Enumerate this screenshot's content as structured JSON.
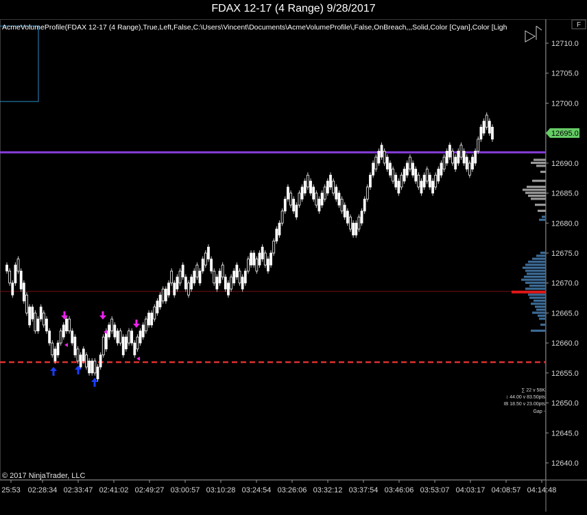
{
  "window": {
    "title": "FDAX 12-17 (4 Range)  9/28/2017"
  },
  "indicator_label": "AcmeVolumeProfile(FDAX 12-17 (4 Range),True,Left,False,C:\\Users\\Vincent\\Documents\\AcmeVolumeProfile\\,False,OnBreach,,,Solid,Color [Cyan],Color [Ligh",
  "panel_badge": "F",
  "copyright": "© 2017 NinjaTrader, LLC",
  "colors": {
    "background": "#000000",
    "candle_up": "#ffffff",
    "purple_line": "#8a3ee0",
    "red_dashed": "#e03030",
    "thin_red_line": "#8a1010",
    "profile_gray": "#9a9a9a",
    "profile_blue": "#3d6b96",
    "poc_red": "#e01818",
    "price_badge": "#66cc66",
    "axis_text": "#d8d8d8"
  },
  "price_axis": {
    "ticks": [
      "12710.0",
      "12705.0",
      "12700.0",
      "12695.0",
      "12690.0",
      "12685.0",
      "12680.0",
      "12675.0",
      "12670.0",
      "12665.0",
      "12660.0",
      "12655.0",
      "12650.0",
      "12645.0",
      "12640.0"
    ],
    "last_price": "12695.0"
  },
  "time_axis": {
    "ticks": [
      "25:53",
      "02:28:34",
      "02:33:47",
      "02:41:02",
      "02:49:27",
      "03:00:57",
      "03:10:28",
      "03:24:54",
      "03:26:06",
      "03:32:12",
      "03:37:54",
      "03:46:06",
      "03:53:07",
      "04:03:17",
      "04:08:57",
      "04:14:48"
    ]
  },
  "levels": {
    "purple": 12691.8,
    "thin_red": 12668.6,
    "red_dashed": 12656.8
  },
  "stats": [
    "∑ 22 v 58K",
    "↕ 44.00 v 83.50pts",
    "IB 18.50 v 23.00pts",
    "Gap -"
  ],
  "chart_data": {
    "type": "candlestick",
    "ylim": [
      12637,
      12714
    ],
    "candles": [
      [
        12672,
        12673
      ],
      [
        12670,
        12672
      ],
      [
        12668,
        12670
      ],
      [
        12670,
        12673
      ],
      [
        12672,
        12674
      ],
      [
        12669,
        12672
      ],
      [
        12667,
        12670
      ],
      [
        12665,
        12668
      ],
      [
        12663,
        12666
      ],
      [
        12664,
        12666
      ],
      [
        12662,
        12665
      ],
      [
        12662,
        12664
      ],
      [
        12664,
        12666
      ],
      [
        12663,
        12665
      ],
      [
        12662,
        12664
      ],
      [
        12660,
        12662
      ],
      [
        12658,
        12660
      ],
      [
        12657,
        12659
      ],
      [
        12658,
        12660
      ],
      [
        12660,
        12662
      ],
      [
        12661,
        12663
      ],
      [
        12662,
        12664
      ],
      [
        12662,
        12664
      ],
      [
        12660,
        12662
      ],
      [
        12658,
        12661
      ],
      [
        12657,
        12659
      ],
      [
        12656,
        12658
      ],
      [
        12657,
        12659
      ],
      [
        12656,
        12658
      ],
      [
        12655,
        12657
      ],
      [
        12655,
        12657
      ],
      [
        12655,
        12657
      ],
      [
        12654,
        12656
      ],
      [
        12656,
        12658
      ],
      [
        12658,
        12661
      ],
      [
        12659,
        12662
      ],
      [
        12661,
        12663
      ],
      [
        12662,
        12664
      ],
      [
        12661,
        12663
      ],
      [
        12660,
        12662
      ],
      [
        12660,
        12662
      ],
      [
        12658,
        12661
      ],
      [
        12659,
        12661
      ],
      [
        12660,
        12662
      ],
      [
        12660,
        12662
      ],
      [
        12658,
        12660
      ],
      [
        12659,
        12661
      ],
      [
        12660,
        12662
      ],
      [
        12661,
        12663
      ],
      [
        12662,
        12664
      ],
      [
        12663,
        12665
      ],
      [
        12663,
        12665
      ],
      [
        12664,
        12666
      ],
      [
        12665,
        12667
      ],
      [
        12666,
        12668
      ],
      [
        12667,
        12669
      ],
      [
        12667,
        12669
      ],
      [
        12668,
        12670
      ],
      [
        12670,
        12672
      ],
      [
        12668,
        12670
      ],
      [
        12669,
        12671
      ],
      [
        12670,
        12672
      ],
      [
        12671,
        12673
      ],
      [
        12669,
        12671
      ],
      [
        12668,
        12670
      ],
      [
        12669,
        12671
      ],
      [
        12670,
        12672
      ],
      [
        12671,
        12673
      ],
      [
        12670,
        12672
      ],
      [
        12672,
        12674
      ],
      [
        12673,
        12675
      ],
      [
        12674,
        12676
      ],
      [
        12672,
        12674
      ],
      [
        12670,
        12672
      ],
      [
        12669,
        12671
      ],
      [
        12670,
        12672
      ],
      [
        12671,
        12673
      ],
      [
        12669,
        12671
      ],
      [
        12668,
        12670
      ],
      [
        12669,
        12671
      ],
      [
        12670,
        12672
      ],
      [
        12671,
        12673
      ],
      [
        12670,
        12672
      ],
      [
        12669,
        12671
      ],
      [
        12670,
        12672
      ],
      [
        12672,
        12674
      ],
      [
        12673,
        12675
      ],
      [
        12673,
        12675
      ],
      [
        12672,
        12674
      ],
      [
        12673,
        12675
      ],
      [
        12674,
        12676
      ],
      [
        12673,
        12675
      ],
      [
        12672,
        12674
      ],
      [
        12673,
        12675
      ],
      [
        12675,
        12677
      ],
      [
        12677,
        12679
      ],
      [
        12678,
        12680
      ],
      [
        12680,
        12682
      ],
      [
        12682,
        12684
      ],
      [
        12684,
        12686
      ],
      [
        12683,
        12685
      ],
      [
        12682,
        12684
      ],
      [
        12681,
        12683
      ],
      [
        12683,
        12685
      ],
      [
        12684,
        12686
      ],
      [
        12685,
        12687
      ],
      [
        12686,
        12688
      ],
      [
        12685,
        12687
      ],
      [
        12684,
        12686
      ],
      [
        12683,
        12685
      ],
      [
        12682,
        12684
      ],
      [
        12683,
        12685
      ],
      [
        12684,
        12686
      ],
      [
        12685,
        12687
      ],
      [
        12686,
        12688
      ],
      [
        12685,
        12687
      ],
      [
        12684,
        12686
      ],
      [
        12683,
        12685
      ],
      [
        12682,
        12684
      ],
      [
        12681,
        12683
      ],
      [
        12680,
        12682
      ],
      [
        12679,
        12681
      ],
      [
        12678,
        12680
      ],
      [
        12678,
        12680
      ],
      [
        12679,
        12681
      ],
      [
        12680,
        12682
      ],
      [
        12682,
        12684
      ],
      [
        12684,
        12686
      ],
      [
        12686,
        12688
      ],
      [
        12688,
        12690
      ],
      [
        12689,
        12691
      ],
      [
        12690,
        12692
      ],
      [
        12691,
        12693
      ],
      [
        12690,
        12692
      ],
      [
        12689,
        12691
      ],
      [
        12688,
        12690
      ],
      [
        12687,
        12689
      ],
      [
        12686,
        12688
      ],
      [
        12685,
        12687
      ],
      [
        12686,
        12688
      ],
      [
        12687,
        12689
      ],
      [
        12688,
        12690
      ],
      [
        12689,
        12691
      ],
      [
        12688,
        12690
      ],
      [
        12687,
        12689
      ],
      [
        12686,
        12688
      ],
      [
        12685,
        12687
      ],
      [
        12686,
        12688
      ],
      [
        12687,
        12689
      ],
      [
        12686,
        12688
      ],
      [
        12685,
        12687
      ],
      [
        12686,
        12688
      ],
      [
        12687,
        12689
      ],
      [
        12688,
        12690
      ],
      [
        12689,
        12691
      ],
      [
        12690,
        12692
      ],
      [
        12691,
        12693
      ],
      [
        12690,
        12692
      ],
      [
        12689,
        12691
      ],
      [
        12690,
        12692
      ],
      [
        12691,
        12693
      ],
      [
        12690,
        12692
      ],
      [
        12689,
        12691
      ],
      [
        12688,
        12690
      ],
      [
        12689,
        12691
      ],
      [
        12690,
        12692
      ],
      [
        12692,
        12694
      ],
      [
        12694,
        12696
      ],
      [
        12695,
        12697
      ],
      [
        12696,
        12698
      ],
      [
        12695,
        12697
      ],
      [
        12694,
        12696
      ]
    ]
  }
}
